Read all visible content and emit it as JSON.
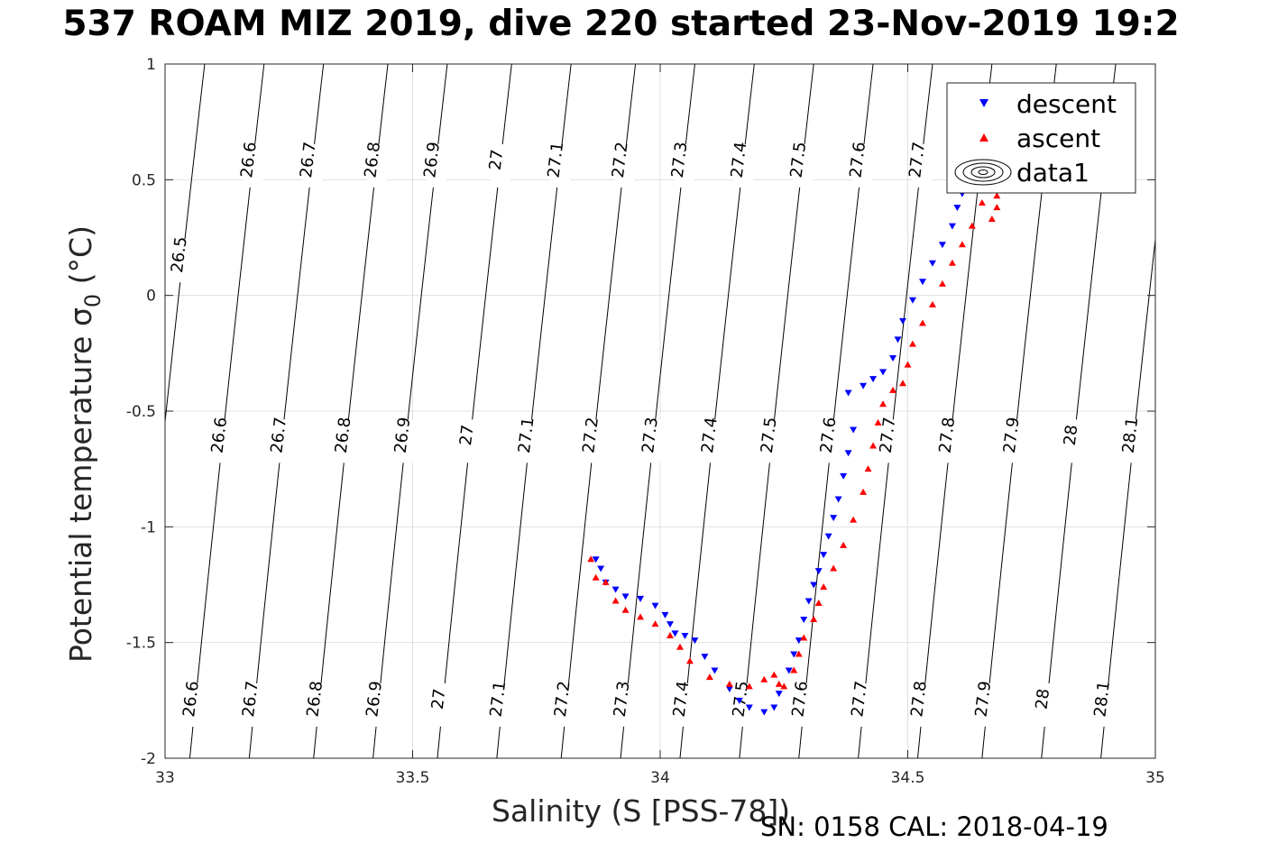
{
  "chart_data": {
    "type": "scatter",
    "title": "537 ROAM MIZ 2019, dive 220 started 23-Nov-2019 19:2",
    "xlabel": "Salinity (S [PSS-78])",
    "ylabel_main": "Potential temperature σ",
    "ylabel_sub": "0",
    "ylabel_unit": " (°C)",
    "xlim": [
      33,
      35
    ],
    "ylim": [
      -2,
      1
    ],
    "xticks": [
      33,
      33.5,
      34,
      34.5,
      35
    ],
    "yticks": [
      -2,
      -1.5,
      -1,
      -0.5,
      0,
      0.5,
      1
    ],
    "grid": true,
    "legend_position": "top-right",
    "legend": [
      "descent",
      "ascent",
      "data1"
    ],
    "colors": {
      "descent": "#0000ff",
      "ascent": "#ff0000",
      "contour": "#000000",
      "grid": "#e0e0e0"
    },
    "contours": [
      {
        "level": "26.5",
        "bottom": 32.93,
        "top": 33.08
      },
      {
        "level": "26.6",
        "bottom": 33.05,
        "top": 33.2
      },
      {
        "level": "26.7",
        "bottom": 33.17,
        "top": 33.32
      },
      {
        "level": "26.8",
        "bottom": 33.3,
        "top": 33.45
      },
      {
        "level": "26.9",
        "bottom": 33.42,
        "top": 33.57
      },
      {
        "level": "27",
        "bottom": 33.55,
        "top": 33.7
      },
      {
        "level": "27.1",
        "bottom": 33.67,
        "top": 33.82
      },
      {
        "level": "27.2",
        "bottom": 33.8,
        "top": 33.95
      },
      {
        "level": "27.3",
        "bottom": 33.92,
        "top": 34.07
      },
      {
        "level": "27.4",
        "bottom": 34.04,
        "top": 34.19
      },
      {
        "level": "27.5",
        "bottom": 34.16,
        "top": 34.31
      },
      {
        "level": "27.6",
        "bottom": 34.28,
        "top": 34.43
      },
      {
        "level": "27.7",
        "bottom": 34.4,
        "top": 34.55
      },
      {
        "level": "27.8",
        "bottom": 34.52,
        "top": 34.67
      },
      {
        "level": "27.9",
        "bottom": 34.65,
        "top": 34.8
      },
      {
        "level": "28",
        "bottom": 34.77,
        "top": 34.92
      },
      {
        "level": "28.1",
        "bottom": 34.89,
        "top": 35.04
      }
    ],
    "label_rows": [
      {
        "y": 0.56,
        "levels": [
          "26.6",
          "26.7",
          "26.8",
          "26.9",
          "27",
          "27.1",
          "27.2",
          "27.3",
          "27.4",
          "27.5",
          "27.6",
          "27.7"
        ]
      },
      {
        "y": -0.63,
        "levels": [
          "26.6",
          "26.7",
          "26.8",
          "26.9",
          "27",
          "27.1",
          "27.2",
          "27.3",
          "27.4",
          "27.5",
          "27.6",
          "27.7",
          "27.8",
          "27.9",
          "28",
          "28.1"
        ]
      },
      {
        "y": -1.77,
        "levels": [
          "26.6",
          "26.7",
          "26.8",
          "26.9",
          "27",
          "27.1",
          "27.2",
          "27.3",
          "27.4",
          "27.5",
          "27.6",
          "27.7",
          "27.8",
          "27.9",
          "28",
          "28.1"
        ]
      },
      {
        "y": 0.15,
        "levels": [
          "26.5"
        ]
      }
    ],
    "series": [
      {
        "name": "descent",
        "marker": "triangle-down",
        "color": "#0000ff",
        "points": [
          [
            33.87,
            -1.14
          ],
          [
            33.88,
            -1.18
          ],
          [
            33.89,
            -1.24
          ],
          [
            33.91,
            -1.27
          ],
          [
            33.93,
            -1.3
          ],
          [
            33.96,
            -1.31
          ],
          [
            33.99,
            -1.34
          ],
          [
            34.01,
            -1.38
          ],
          [
            34.02,
            -1.42
          ],
          [
            34.03,
            -1.46
          ],
          [
            34.05,
            -1.47
          ],
          [
            34.07,
            -1.49
          ],
          [
            34.09,
            -1.56
          ],
          [
            34.11,
            -1.62
          ],
          [
            34.14,
            -1.7
          ],
          [
            34.16,
            -1.75
          ],
          [
            34.18,
            -1.78
          ],
          [
            34.21,
            -1.8
          ],
          [
            34.23,
            -1.78
          ],
          [
            34.24,
            -1.72
          ],
          [
            34.26,
            -1.62
          ],
          [
            34.27,
            -1.55
          ],
          [
            34.28,
            -1.49
          ],
          [
            34.29,
            -1.4
          ],
          [
            34.3,
            -1.32
          ],
          [
            34.31,
            -1.25
          ],
          [
            34.32,
            -1.19
          ],
          [
            34.33,
            -1.12
          ],
          [
            34.34,
            -1.04
          ],
          [
            34.35,
            -0.96
          ],
          [
            34.36,
            -0.88
          ],
          [
            34.37,
            -0.78
          ],
          [
            34.38,
            -0.68
          ],
          [
            34.39,
            -0.58
          ],
          [
            34.38,
            -0.42
          ],
          [
            34.41,
            -0.39
          ],
          [
            34.43,
            -0.36
          ],
          [
            34.45,
            -0.33
          ],
          [
            34.47,
            -0.27
          ],
          [
            34.48,
            -0.19
          ],
          [
            34.49,
            -0.11
          ],
          [
            34.51,
            -0.02
          ],
          [
            34.53,
            0.06
          ],
          [
            34.55,
            0.14
          ],
          [
            34.57,
            0.22
          ],
          [
            34.59,
            0.3
          ],
          [
            34.6,
            0.38
          ],
          [
            34.61,
            0.44
          ]
        ]
      },
      {
        "name": "ascent",
        "marker": "triangle-up",
        "color": "#ff0000",
        "points": [
          [
            33.86,
            -1.14
          ],
          [
            33.87,
            -1.22
          ],
          [
            33.89,
            -1.24
          ],
          [
            33.91,
            -1.32
          ],
          [
            33.93,
            -1.36
          ],
          [
            33.96,
            -1.39
          ],
          [
            33.99,
            -1.42
          ],
          [
            34.02,
            -1.47
          ],
          [
            34.04,
            -1.52
          ],
          [
            34.06,
            -1.58
          ],
          [
            34.1,
            -1.65
          ],
          [
            34.14,
            -1.68
          ],
          [
            34.18,
            -1.69
          ],
          [
            34.21,
            -1.66
          ],
          [
            34.23,
            -1.64
          ],
          [
            34.24,
            -1.68
          ],
          [
            34.25,
            -1.69
          ],
          [
            34.27,
            -1.62
          ],
          [
            34.28,
            -1.55
          ],
          [
            34.29,
            -1.48
          ],
          [
            34.31,
            -1.4
          ],
          [
            34.32,
            -1.33
          ],
          [
            34.33,
            -1.26
          ],
          [
            34.35,
            -1.18
          ],
          [
            34.37,
            -1.08
          ],
          [
            34.39,
            -0.97
          ],
          [
            34.41,
            -0.85
          ],
          [
            34.42,
            -0.75
          ],
          [
            34.43,
            -0.65
          ],
          [
            34.44,
            -0.55
          ],
          [
            34.45,
            -0.47
          ],
          [
            34.47,
            -0.41
          ],
          [
            34.49,
            -0.38
          ],
          [
            34.5,
            -0.3
          ],
          [
            34.51,
            -0.21
          ],
          [
            34.53,
            -0.12
          ],
          [
            34.55,
            -0.04
          ],
          [
            34.57,
            0.05
          ],
          [
            34.59,
            0.14
          ],
          [
            34.61,
            0.22
          ],
          [
            34.63,
            0.3
          ],
          [
            34.65,
            0.4
          ],
          [
            34.66,
            0.46
          ],
          [
            34.67,
            0.33
          ],
          [
            34.68,
            0.38
          ],
          [
            34.68,
            0.43
          ]
        ]
      }
    ]
  }
}
